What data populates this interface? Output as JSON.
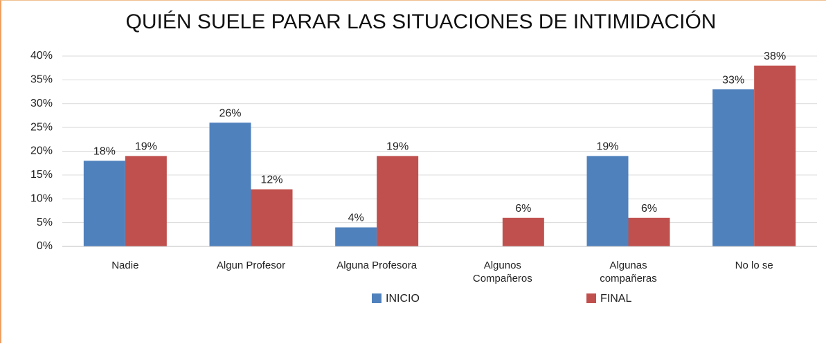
{
  "chart_data": {
    "type": "bar",
    "title": "QUIÉN SUELE PARAR LAS SITUACIONES DE INTIMIDACIÓN",
    "categories": [
      "Nadie",
      "Algun Profesor",
      "Alguna Profesora",
      "Algunos Compañeros",
      "Algunas compañeras",
      "No lo se"
    ],
    "series": [
      {
        "name": "INICIO",
        "color": "#4f81bd",
        "values": [
          18,
          26,
          4,
          null,
          19,
          33
        ],
        "value_labels": [
          "18%",
          "26%",
          "4%",
          null,
          "19%",
          "33%"
        ]
      },
      {
        "name": "FINAL",
        "color": "#c0504d",
        "values": [
          19,
          12,
          19,
          6,
          6,
          38
        ],
        "value_labels": [
          "19%",
          "12%",
          "19%",
          "6%",
          "6%",
          "38%"
        ]
      }
    ],
    "ylim": [
      0,
      40
    ],
    "yticks": [
      {
        "value": 0,
        "label": "0%"
      },
      {
        "value": 5,
        "label": "5%"
      },
      {
        "value": 10,
        "label": "10%"
      },
      {
        "value": 15,
        "label": "15%"
      },
      {
        "value": 20,
        "label": "20%"
      },
      {
        "value": 25,
        "label": "25%"
      },
      {
        "value": 30,
        "label": "30%"
      },
      {
        "value": 35,
        "label": "35%"
      },
      {
        "value": 40,
        "label": "40%"
      }
    ],
    "grid": true,
    "legend": "bottom"
  }
}
